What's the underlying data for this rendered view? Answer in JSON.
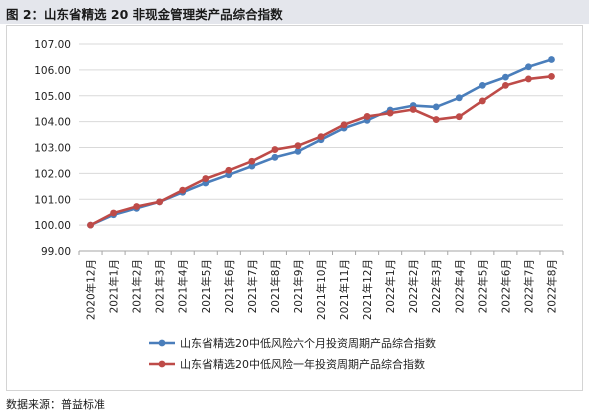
{
  "title": "图 2：山东省精选 20 非现金管理类产品综合指数",
  "source": "数据来源：普益标准",
  "colors": {
    "series1": "#4a7ebb",
    "series2": "#be4b48",
    "grid": "#d9d9d9",
    "title_bg": "#e4e6ec"
  },
  "chart_data": {
    "type": "line",
    "title": "",
    "xlabel": "",
    "ylabel": "",
    "ylim": [
      99.0,
      107.0
    ],
    "yticks": [
      "99.00",
      "100.00",
      "101.00",
      "102.00",
      "103.00",
      "104.00",
      "105.00",
      "106.00",
      "107.00"
    ],
    "grid": true,
    "legend_position": "bottom",
    "categories": [
      "2020年12月",
      "2021年1月",
      "2021年2月",
      "2021年3月",
      "2021年4月",
      "2021年5月",
      "2021年6月",
      "2021年7月",
      "2021年8月",
      "2021年9月",
      "2021年10月",
      "2021年11月",
      "2021年12月",
      "2022年1月",
      "2022年2月",
      "2022年3月",
      "2022年4月",
      "2022年5月",
      "2022年6月",
      "2022年7月",
      "2022年8月"
    ],
    "series": [
      {
        "name": "山东省精选20中低风险六个月投资周期产品综合指数",
        "color": "#4a7ebb",
        "values": [
          100.0,
          100.4,
          100.65,
          100.9,
          101.27,
          101.63,
          101.95,
          102.28,
          102.62,
          102.85,
          103.3,
          103.75,
          104.05,
          104.45,
          104.62,
          104.57,
          104.92,
          105.4,
          105.72,
          106.12,
          106.4
        ]
      },
      {
        "name": "山东省精选20中低风险一年投资周期产品综合指数",
        "color": "#be4b48",
        "values": [
          100.0,
          100.47,
          100.72,
          100.9,
          101.35,
          101.8,
          102.12,
          102.47,
          102.92,
          103.07,
          103.42,
          103.88,
          104.2,
          104.33,
          104.47,
          104.08,
          104.19,
          104.8,
          105.4,
          105.65,
          105.75
        ]
      }
    ]
  }
}
